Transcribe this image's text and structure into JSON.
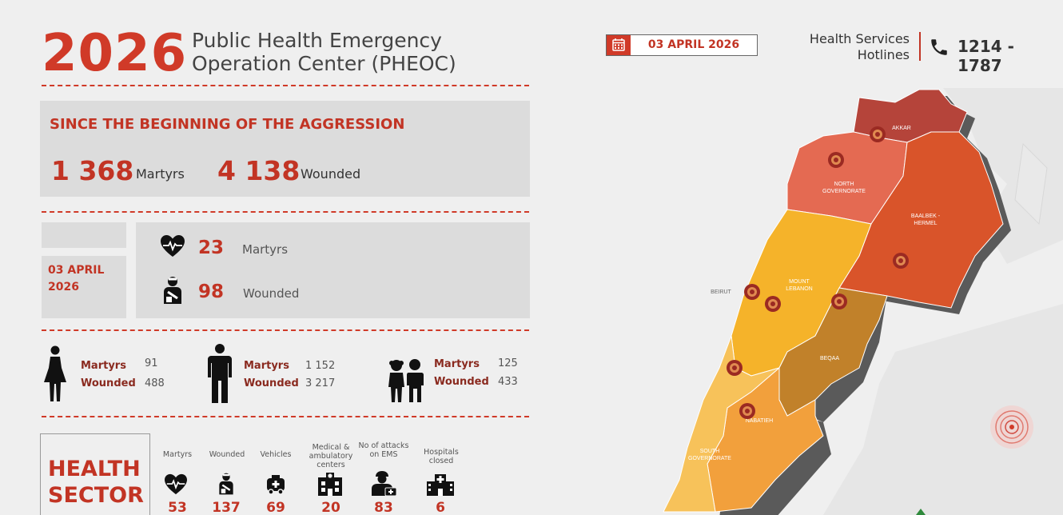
{
  "header": {
    "year": "2026",
    "title_line1": "Public Health Emergency",
    "title_line2": "Operation Center (PHEOC)",
    "date": "03 APRIL 2026",
    "hotline_label_line1": "Health Services",
    "hotline_label_line2": "Hotlines",
    "hotline_number": "1214 - 1787"
  },
  "since": {
    "title": "SINCE THE BEGINNING OF THE AGGRESSION",
    "martyrs_value": "1 368",
    "martyrs_label": "Martyrs",
    "wounded_value": "4 138",
    "wounded_label": "Wounded"
  },
  "daily": {
    "date_line1": "03 APRIL",
    "date_line2": "2026",
    "martyrs_value": "23",
    "martyrs_label": "Martyrs",
    "wounded_value": "98",
    "wounded_label": "Wounded"
  },
  "groups": [
    {
      "martyrs_label": "Martyrs",
      "martyrs": "91",
      "wounded_label": "Wounded",
      "wounded": "488"
    },
    {
      "martyrs_label": "Martyrs",
      "martyrs": "1 152",
      "wounded_label": "Wounded",
      "wounded": "3 217"
    },
    {
      "martyrs_label": "Martyrs",
      "martyrs": "125",
      "wounded_label": "Wounded",
      "wounded": "433"
    }
  ],
  "health_sector": {
    "title_line1": "HEALTH",
    "title_line2": "SECTOR",
    "items": [
      {
        "label": "Martyrs",
        "value": "53",
        "icon": "heart-pulse-icon"
      },
      {
        "label": "Wounded",
        "value": "137",
        "icon": "injured-person-icon"
      },
      {
        "label": "Vehicles",
        "value": "69",
        "icon": "ambulance-icon"
      },
      {
        "label": "Medical & ambulatory centers",
        "value": "20",
        "icon": "medical-center-icon"
      },
      {
        "label": "No of attacks on EMS",
        "value": "83",
        "icon": "paramedic-icon"
      },
      {
        "label": "Hospitals closed",
        "value": "6",
        "icon": "hospital-icon"
      }
    ]
  },
  "map": {
    "regions": {
      "akkar": "AKKAR",
      "north": "NORTH GOVERNORATE",
      "baalbek": "BAALBEK - HERMEL",
      "mount": "MOUNT LEBANON",
      "beirut": "BEIRUT",
      "beqaa": "BEQAA",
      "nabatieh": "NABATIEH",
      "south": "SOUTH GOVERNORATE"
    },
    "colors": {
      "akkar": "#b5443a",
      "north": "#e46a52",
      "baalbek": "#d9542a",
      "mount": "#f5b32a",
      "beqaa": "#c1812a",
      "nabatieh": "#f2a03c",
      "south": "#f7c25a",
      "accent": "#d03a28"
    }
  }
}
